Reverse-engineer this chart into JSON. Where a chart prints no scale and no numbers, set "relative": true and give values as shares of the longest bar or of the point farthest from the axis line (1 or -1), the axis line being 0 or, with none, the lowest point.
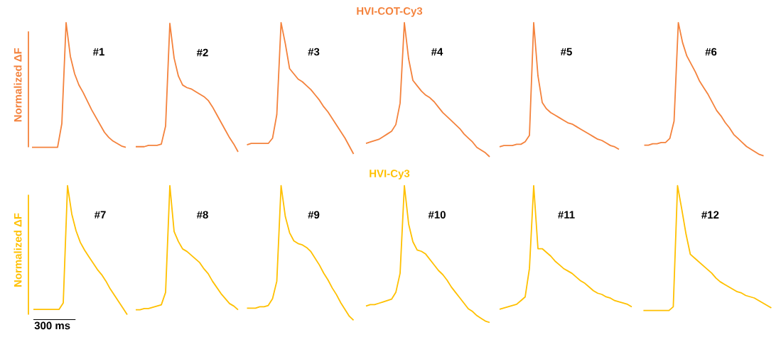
{
  "chart_data": [
    {
      "type": "other",
      "title": "HVI-COT-Cy3",
      "color": "#f4823c"
    },
    {
      "type": "line",
      "ylabel": "Normalized ΔF",
      "relative": true,
      "categories": [
        null,
        null,
        null,
        null,
        null,
        null,
        null,
        null,
        null,
        null,
        null,
        null,
        null,
        null,
        null,
        null,
        null,
        null,
        null,
        null,
        null,
        null,
        null
      ],
      "series": [
        {
          "name": "#1",
          "color": "#f4823c",
          "values": [
            0,
            0,
            0,
            0,
            0,
            0,
            0,
            0.19,
            1,
            0.73,
            0.59,
            0.5,
            0.44,
            0.37,
            0.3,
            0.24,
            0.18,
            0.12,
            0.08,
            0.05,
            0.03,
            0.01,
            0
          ]
        }
      ]
    },
    {
      "type": "line",
      "relative": true,
      "categories": [
        null,
        null,
        null,
        null,
        null,
        null,
        null,
        null,
        null,
        null,
        null,
        null,
        null,
        null,
        null,
        null,
        null,
        null,
        null,
        null,
        null,
        null,
        null,
        null,
        null
      ],
      "series": [
        {
          "name": "#2",
          "color": "#f4823c",
          "values": [
            0.04,
            0.04,
            0.04,
            0.05,
            0.05,
            0.05,
            0.06,
            0.2,
            1,
            0.73,
            0.59,
            0.52,
            0.5,
            0.49,
            0.47,
            0.45,
            0.43,
            0.4,
            0.35,
            0.29,
            0.23,
            0.17,
            0.11,
            0.06,
            0
          ]
        }
      ]
    },
    {
      "type": "line",
      "relative": true,
      "categories": [
        null,
        null,
        null,
        null,
        null,
        null,
        null,
        null,
        null,
        null,
        null,
        null,
        null,
        null,
        null,
        null,
        null,
        null,
        null,
        null,
        null,
        null,
        null,
        null,
        null,
        null
      ],
      "series": [
        {
          "name": "#3",
          "color": "#f4823c",
          "values": [
            0.07,
            0.08,
            0.08,
            0.08,
            0.08,
            0.08,
            0.12,
            0.3,
            1,
            0.84,
            0.65,
            0.61,
            0.57,
            0.55,
            0.52,
            0.49,
            0.45,
            0.41,
            0.36,
            0.32,
            0.27,
            0.22,
            0.17,
            0.12,
            0.06,
            0
          ]
        }
      ]
    },
    {
      "type": "line",
      "relative": true,
      "categories": [
        null,
        null,
        null,
        null,
        null,
        null,
        null,
        null,
        null,
        null,
        null,
        null,
        null,
        null,
        null,
        null,
        null,
        null,
        null,
        null,
        null,
        null,
        null,
        null,
        null,
        null,
        null,
        null,
        null,
        null
      ],
      "series": [
        {
          "name": "#4",
          "color": "#f4823c",
          "values": [
            0.1,
            0.11,
            0.12,
            0.13,
            0.15,
            0.17,
            0.19,
            0.24,
            0.4,
            1,
            0.73,
            0.57,
            0.53,
            0.49,
            0.46,
            0.44,
            0.41,
            0.37,
            0.33,
            0.3,
            0.27,
            0.24,
            0.21,
            0.17,
            0.14,
            0.11,
            0.07,
            0.05,
            0.03,
            0
          ]
        }
      ]
    },
    {
      "type": "line",
      "relative": true,
      "categories": [
        null,
        null,
        null,
        null,
        null,
        null,
        null,
        null,
        null,
        null,
        null,
        null,
        null,
        null,
        null,
        null,
        null,
        null,
        null,
        null,
        null,
        null,
        null,
        null,
        null,
        null,
        null,
        null,
        null
      ],
      "series": [
        {
          "name": "#5",
          "color": "#f4823c",
          "values": [
            0.02,
            0.03,
            0.03,
            0.03,
            0.04,
            0.04,
            0.06,
            0.11,
            1,
            0.58,
            0.37,
            0.32,
            0.29,
            0.27,
            0.25,
            0.23,
            0.21,
            0.2,
            0.18,
            0.16,
            0.14,
            0.12,
            0.1,
            0.08,
            0.07,
            0.05,
            0.03,
            0.02,
            0
          ]
        }
      ]
    },
    {
      "type": "line",
      "relative": true,
      "categories": [
        null,
        null,
        null,
        null,
        null,
        null,
        null,
        null,
        null,
        null,
        null,
        null,
        null,
        null,
        null,
        null,
        null,
        null,
        null,
        null,
        null,
        null,
        null,
        null,
        null,
        null,
        null,
        null,
        null
      ],
      "series": [
        {
          "name": "#6",
          "color": "#f4823c",
          "values": [
            0.08,
            0.08,
            0.09,
            0.09,
            0.1,
            0.1,
            0.13,
            0.26,
            1,
            0.85,
            0.75,
            0.69,
            0.63,
            0.56,
            0.51,
            0.46,
            0.4,
            0.34,
            0.3,
            0.25,
            0.21,
            0.16,
            0.13,
            0.1,
            0.07,
            0.05,
            0.03,
            0.01,
            0
          ]
        }
      ]
    },
    {
      "type": "other",
      "title": "HVI-Cy3",
      "color": "#ffc000"
    },
    {
      "type": "line",
      "ylabel": "Normalized ΔF",
      "relative": true,
      "annotations": [
        "300 ms"
      ],
      "categories": [
        null,
        null,
        null,
        null,
        null,
        null,
        null,
        null,
        null,
        null,
        null,
        null,
        null,
        null,
        null,
        null,
        null,
        null,
        null,
        null,
        null,
        null,
        null
      ],
      "series": [
        {
          "name": "#7",
          "color": "#ffc000",
          "values": [
            0.04,
            0.04,
            0.04,
            0.04,
            0.04,
            0.04,
            0.04,
            0.09,
            1,
            0.78,
            0.65,
            0.56,
            0.5,
            0.45,
            0.4,
            0.35,
            0.31,
            0.26,
            0.2,
            0.15,
            0.1,
            0.05,
            0
          ]
        }
      ]
    },
    {
      "type": "line",
      "relative": true,
      "categories": [
        null,
        null,
        null,
        null,
        null,
        null,
        null,
        null,
        null,
        null,
        null,
        null,
        null,
        null,
        null,
        null,
        null,
        null,
        null,
        null,
        null,
        null,
        null,
        null,
        null
      ],
      "series": [
        {
          "name": "#8",
          "color": "#ffc000",
          "values": [
            0,
            0,
            0.01,
            0.01,
            0.02,
            0.03,
            0.04,
            0.14,
            1,
            0.63,
            0.55,
            0.49,
            0.47,
            0.44,
            0.41,
            0.38,
            0.33,
            0.29,
            0.23,
            0.18,
            0.13,
            0.09,
            0.05,
            0.03,
            0
          ]
        }
      ]
    },
    {
      "type": "line",
      "relative": true,
      "categories": [
        null,
        null,
        null,
        null,
        null,
        null,
        null,
        null,
        null,
        null,
        null,
        null,
        null,
        null,
        null,
        null,
        null,
        null,
        null,
        null,
        null,
        null,
        null,
        null,
        null,
        null
      ],
      "series": [
        {
          "name": "#9",
          "color": "#ffc000",
          "values": [
            0.09,
            0.09,
            0.09,
            0.1,
            0.1,
            0.11,
            0.16,
            0.29,
            1,
            0.77,
            0.65,
            0.59,
            0.57,
            0.56,
            0.54,
            0.51,
            0.46,
            0.41,
            0.35,
            0.3,
            0.24,
            0.19,
            0.13,
            0.08,
            0.03,
            0
          ]
        }
      ]
    },
    {
      "type": "line",
      "relative": true,
      "categories": [
        null,
        null,
        null,
        null,
        null,
        null,
        null,
        null,
        null,
        null,
        null,
        null,
        null,
        null,
        null,
        null,
        null,
        null,
        null,
        null,
        null,
        null,
        null,
        null,
        null,
        null,
        null,
        null,
        null,
        null
      ],
      "series": [
        {
          "name": "#10",
          "color": "#ffc000",
          "values": [
            0.12,
            0.13,
            0.13,
            0.14,
            0.15,
            0.16,
            0.17,
            0.22,
            0.36,
            1,
            0.72,
            0.59,
            0.53,
            0.52,
            0.5,
            0.46,
            0.42,
            0.38,
            0.35,
            0.31,
            0.26,
            0.22,
            0.18,
            0.14,
            0.1,
            0.08,
            0.05,
            0.03,
            0.01,
            0
          ]
        }
      ]
    },
    {
      "type": "line",
      "relative": true,
      "categories": [
        null,
        null,
        null,
        null,
        null,
        null,
        null,
        null,
        null,
        null,
        null,
        null,
        null,
        null,
        null,
        null,
        null,
        null,
        null,
        null,
        null,
        null,
        null,
        null,
        null,
        null,
        null,
        null,
        null,
        null,
        null,
        null
      ],
      "series": [
        {
          "name": "#11",
          "color": "#ffc000",
          "values": [
            0,
            0.01,
            0.02,
            0.03,
            0.04,
            0.07,
            0.1,
            0.33,
            1,
            0.49,
            0.49,
            0.46,
            0.43,
            0.39,
            0.36,
            0.33,
            0.31,
            0.29,
            0.26,
            0.23,
            0.21,
            0.18,
            0.15,
            0.13,
            0.12,
            0.1,
            0.09,
            0.07,
            0.06,
            0.05,
            0.04,
            0.02
          ]
        }
      ]
    },
    {
      "type": "line",
      "relative": true,
      "categories": [
        null,
        null,
        null,
        null,
        null,
        null,
        null,
        null,
        null,
        null,
        null,
        null,
        null,
        null,
        null,
        null,
        null,
        null,
        null,
        null,
        null,
        null,
        null,
        null,
        null,
        null,
        null,
        null,
        null,
        null,
        null
      ],
      "series": [
        {
          "name": "#12",
          "color": "#ffc000",
          "values": [
            0,
            0,
            0,
            0,
            0,
            0,
            0,
            0.03,
            1,
            0.81,
            0.61,
            0.45,
            0.42,
            0.39,
            0.36,
            0.33,
            0.3,
            0.26,
            0.23,
            0.21,
            0.19,
            0.17,
            0.15,
            0.14,
            0.12,
            0.11,
            0.1,
            0.08,
            0.06,
            0.04,
            0.02
          ]
        }
      ]
    }
  ]
}
